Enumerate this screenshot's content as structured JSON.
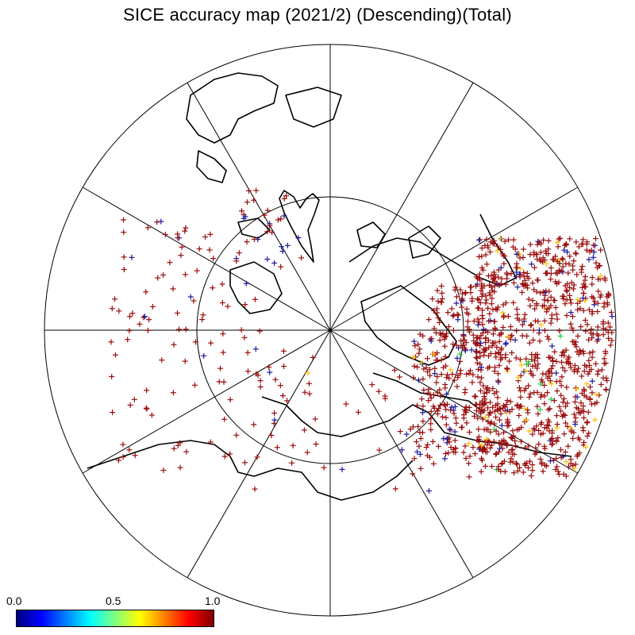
{
  "title": "SICE accuracy map (2021/2) (Descending)(Total)",
  "colorbar": {
    "min_label": "0.0",
    "mid_label": "0.5",
    "max_label": "1.0",
    "colors": [
      "#00007f",
      "#0000ff",
      "#0080ff",
      "#00ffff",
      "#80ff80",
      "#ffff00",
      "#ff8000",
      "#ff0000",
      "#7f0000"
    ]
  },
  "map": {
    "projection": "north-polar-stereographic",
    "graticule_meridian_step_deg": 30,
    "parallel_circle": "inner latitude circle",
    "marker": "+",
    "marker_colors": {
      "dominant": "#9b0c0c",
      "low": "#1a1aa0",
      "mid": "#ffc000",
      "green": "#22cc44"
    }
  }
}
